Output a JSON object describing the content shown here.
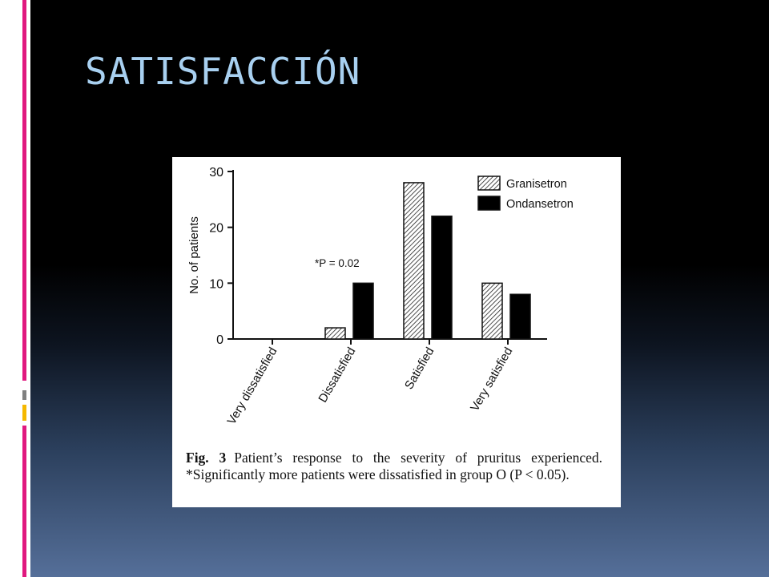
{
  "slide": {
    "title": "SATISFACCIÓN",
    "accent_colors": [
      "#e0187f",
      "#f5b800",
      "#808080"
    ]
  },
  "figure": {
    "caption_label": "Fig. 3",
    "caption_text": "Patient’s response to the severity of pruritus experienced. *Significantly more patients were dissatisfied in group O (P < 0.05)."
  },
  "chart_data": {
    "type": "bar",
    "categories": [
      "Very dissatisfied",
      "Dissatisfied",
      "Satisfied",
      "Very satisfied"
    ],
    "series": [
      {
        "name": "Granisetron",
        "values": [
          0,
          2,
          28,
          10
        ],
        "pattern": "hatched"
      },
      {
        "name": "Ondansetron",
        "values": [
          0,
          10,
          22,
          8
        ],
        "color": "#000000"
      }
    ],
    "ylabel": "No. of patients",
    "ylim": [
      0,
      30
    ],
    "yticks": [
      0,
      10,
      20,
      30
    ],
    "annotation": {
      "text": "*P = 0.02",
      "category": "Dissatisfied"
    },
    "legend_position": "top-right",
    "grid": false
  }
}
